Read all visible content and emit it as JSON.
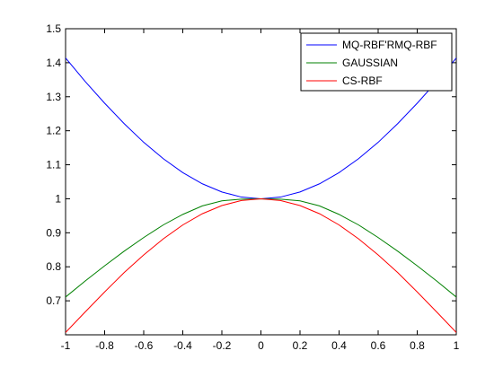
{
  "chart_data": {
    "type": "line",
    "title": "",
    "xlabel": "",
    "ylabel": "",
    "xlim": [
      -1,
      1
    ],
    "ylim": [
      0.6,
      1.5
    ],
    "grid": false,
    "legend_position": "top-right",
    "x_ticks": [
      {
        "value": -1,
        "label": "-1"
      },
      {
        "value": -0.8,
        "label": "-0.8"
      },
      {
        "value": -0.6,
        "label": "-0.6"
      },
      {
        "value": -0.4,
        "label": "-0.4"
      },
      {
        "value": -0.2,
        "label": "-0.2"
      },
      {
        "value": 0,
        "label": "0"
      },
      {
        "value": 0.2,
        "label": "0.2"
      },
      {
        "value": 0.4,
        "label": "0.4"
      },
      {
        "value": 0.6,
        "label": "0.6"
      },
      {
        "value": 0.8,
        "label": "0.8"
      },
      {
        "value": 1,
        "label": "1"
      }
    ],
    "y_ticks": [
      {
        "value": 0.7,
        "label": "0.7"
      },
      {
        "value": 0.8,
        "label": "0.8"
      },
      {
        "value": 0.9,
        "label": "0.9"
      },
      {
        "value": 1.0,
        "label": "1"
      },
      {
        "value": 1.1,
        "label": "1.1"
      },
      {
        "value": 1.2,
        "label": "1.2"
      },
      {
        "value": 1.3,
        "label": "1.3"
      },
      {
        "value": 1.4,
        "label": "1.4"
      },
      {
        "value": 1.5,
        "label": "1.5"
      }
    ],
    "x": [
      -1,
      -0.9,
      -0.8,
      -0.7,
      -0.6,
      -0.5,
      -0.4,
      -0.3,
      -0.2,
      -0.1,
      0,
      0.1,
      0.2,
      0.3,
      0.4,
      0.5,
      0.6,
      0.7,
      0.8,
      0.9,
      1
    ],
    "series": [
      {
        "name": "MQ-RBF'RMQ-RBF",
        "color": "#0000ff",
        "values": [
          1.414,
          1.345,
          1.281,
          1.221,
          1.166,
          1.118,
          1.077,
          1.044,
          1.02,
          1.005,
          1.0,
          1.005,
          1.02,
          1.044,
          1.077,
          1.118,
          1.166,
          1.221,
          1.281,
          1.345,
          1.414
        ]
      },
      {
        "name": "GAUSSIAN",
        "color": "#008000",
        "values": [
          0.711,
          0.758,
          0.803,
          0.846,
          0.886,
          0.923,
          0.954,
          0.979,
          0.994,
          0.999,
          1.0,
          0.999,
          0.994,
          0.979,
          0.954,
          0.923,
          0.886,
          0.846,
          0.803,
          0.758,
          0.711
        ]
      },
      {
        "name": "CS-RBF",
        "color": "#ff0000",
        "values": [
          0.607,
          0.667,
          0.726,
          0.783,
          0.835,
          0.882,
          0.923,
          0.956,
          0.98,
          0.995,
          1.0,
          0.995,
          0.98,
          0.956,
          0.923,
          0.882,
          0.835,
          0.783,
          0.726,
          0.667,
          0.607
        ]
      }
    ]
  }
}
